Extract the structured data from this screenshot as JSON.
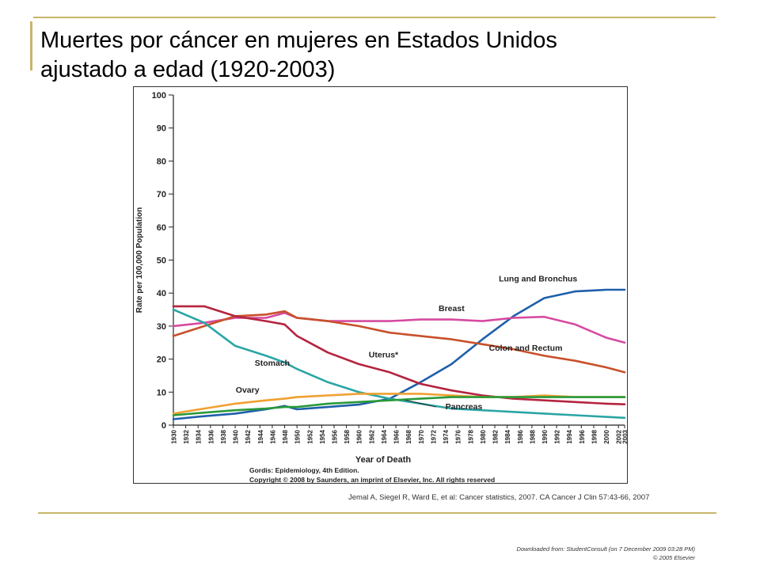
{
  "slide": {
    "title_line1": "Muertes por cáncer en mujeres en Estados Unidos",
    "title_line2": "ajustado a edad (1920-2003)",
    "citation": "Jemal A, Siegel R, Ward E, et al: Cancer statistics, 2007. CA Cancer J Clin 57:43-66, 2007",
    "download_line1": "Downloaded from: StudentConsult (on 7 December 2009 03:28 PM)",
    "download_line2": "© 2005 Elsevier",
    "accent_color": "#c8b56a"
  },
  "chart_data": {
    "type": "line",
    "xlabel": "Year of Death",
    "ylabel": "Rate per 100,000 Population",
    "xlim": [
      1930,
      2003
    ],
    "ylim": [
      0,
      100
    ],
    "yticks": [
      0,
      10,
      20,
      30,
      40,
      50,
      60,
      70,
      80,
      90,
      100
    ],
    "xticks": [
      "1930",
      "1932",
      "1934",
      "1936",
      "1938",
      "1940",
      "1942",
      "1944",
      "1946",
      "1948",
      "1950",
      "1952",
      "1954",
      "1956",
      "1958",
      "1960",
      "1962",
      "1964",
      "1966",
      "1968",
      "1970",
      "1972",
      "1974",
      "1976",
      "1978",
      "1980",
      "1982",
      "1984",
      "1986",
      "1988",
      "1990",
      "1992",
      "1994",
      "1996",
      "1998",
      "2000",
      "2002",
      "2003"
    ],
    "x": [
      1930,
      1935,
      1940,
      1945,
      1948,
      1950,
      1955,
      1960,
      1965,
      1970,
      1975,
      1980,
      1985,
      1990,
      1995,
      2000,
      2003
    ],
    "credit_line1": "Gordis: Epidemiology, 4th Edition.",
    "credit_line2": "Copyright © 2008 by Saunders, an imprint of Elsevier, Inc. All rights reserved",
    "series": [
      {
        "name": "Lung and Bronchus",
        "color": "#1f5faa",
        "label_year": 1989,
        "label_value": 43.5,
        "values": [
          1.8,
          2.7,
          3.5,
          4.8,
          5.8,
          4.8,
          5.5,
          6.2,
          8.0,
          13.0,
          18.5,
          26.0,
          33.0,
          38.5,
          40.5,
          41.0,
          41.0
        ]
      },
      {
        "name": "Breast",
        "color": "#d64aa0",
        "label_year": 1975,
        "label_value": 34.5,
        "values": [
          30.0,
          31.0,
          32.5,
          32.5,
          34.0,
          32.5,
          31.5,
          31.5,
          31.5,
          32.0,
          32.0,
          31.5,
          32.5,
          32.8,
          30.5,
          26.5,
          25.0
        ]
      },
      {
        "name": "Colon and Rectum",
        "color": "#c8502a",
        "label_year": 1987,
        "label_value": 22.5,
        "values": [
          27.0,
          30.0,
          33.0,
          33.5,
          34.5,
          32.5,
          31.5,
          30.0,
          28.0,
          27.0,
          26.0,
          24.5,
          23.0,
          21.0,
          19.5,
          17.5,
          16.0
        ]
      },
      {
        "name": "Uterus*",
        "color": "#b5243e",
        "label_year": 1964,
        "label_value": 20.5,
        "values": [
          36.0,
          36.0,
          33.0,
          31.5,
          30.5,
          27.0,
          22.0,
          18.5,
          16.0,
          12.5,
          10.5,
          9.0,
          8.0,
          7.5,
          7.0,
          6.5,
          6.3
        ]
      },
      {
        "name": "Stomach",
        "color": "#2ba5a5",
        "label_year": 1946,
        "label_value": 18.0,
        "values": [
          35.0,
          31.0,
          24.0,
          21.0,
          19.0,
          17.0,
          13.0,
          10.0,
          8.0,
          6.5,
          5.0,
          4.5,
          4.0,
          3.5,
          3.0,
          2.5,
          2.2
        ]
      },
      {
        "name": "Ovary",
        "color": "#f0a030",
        "label_year": 1942,
        "label_value": 9.8,
        "values": [
          3.5,
          5.0,
          6.5,
          7.5,
          8.0,
          8.5,
          9.0,
          9.5,
          9.5,
          9.5,
          9.0,
          8.5,
          8.5,
          9.0,
          8.5,
          8.5,
          8.5
        ]
      },
      {
        "name": "Pancreas",
        "color": "#2a9a3a",
        "label_year": 1977,
        "label_value": 4.8,
        "values": [
          3.0,
          3.8,
          4.5,
          5.0,
          5.5,
          5.5,
          6.5,
          7.0,
          7.5,
          8.0,
          8.5,
          8.5,
          8.5,
          8.5,
          8.5,
          8.5,
          8.5
        ]
      }
    ]
  }
}
